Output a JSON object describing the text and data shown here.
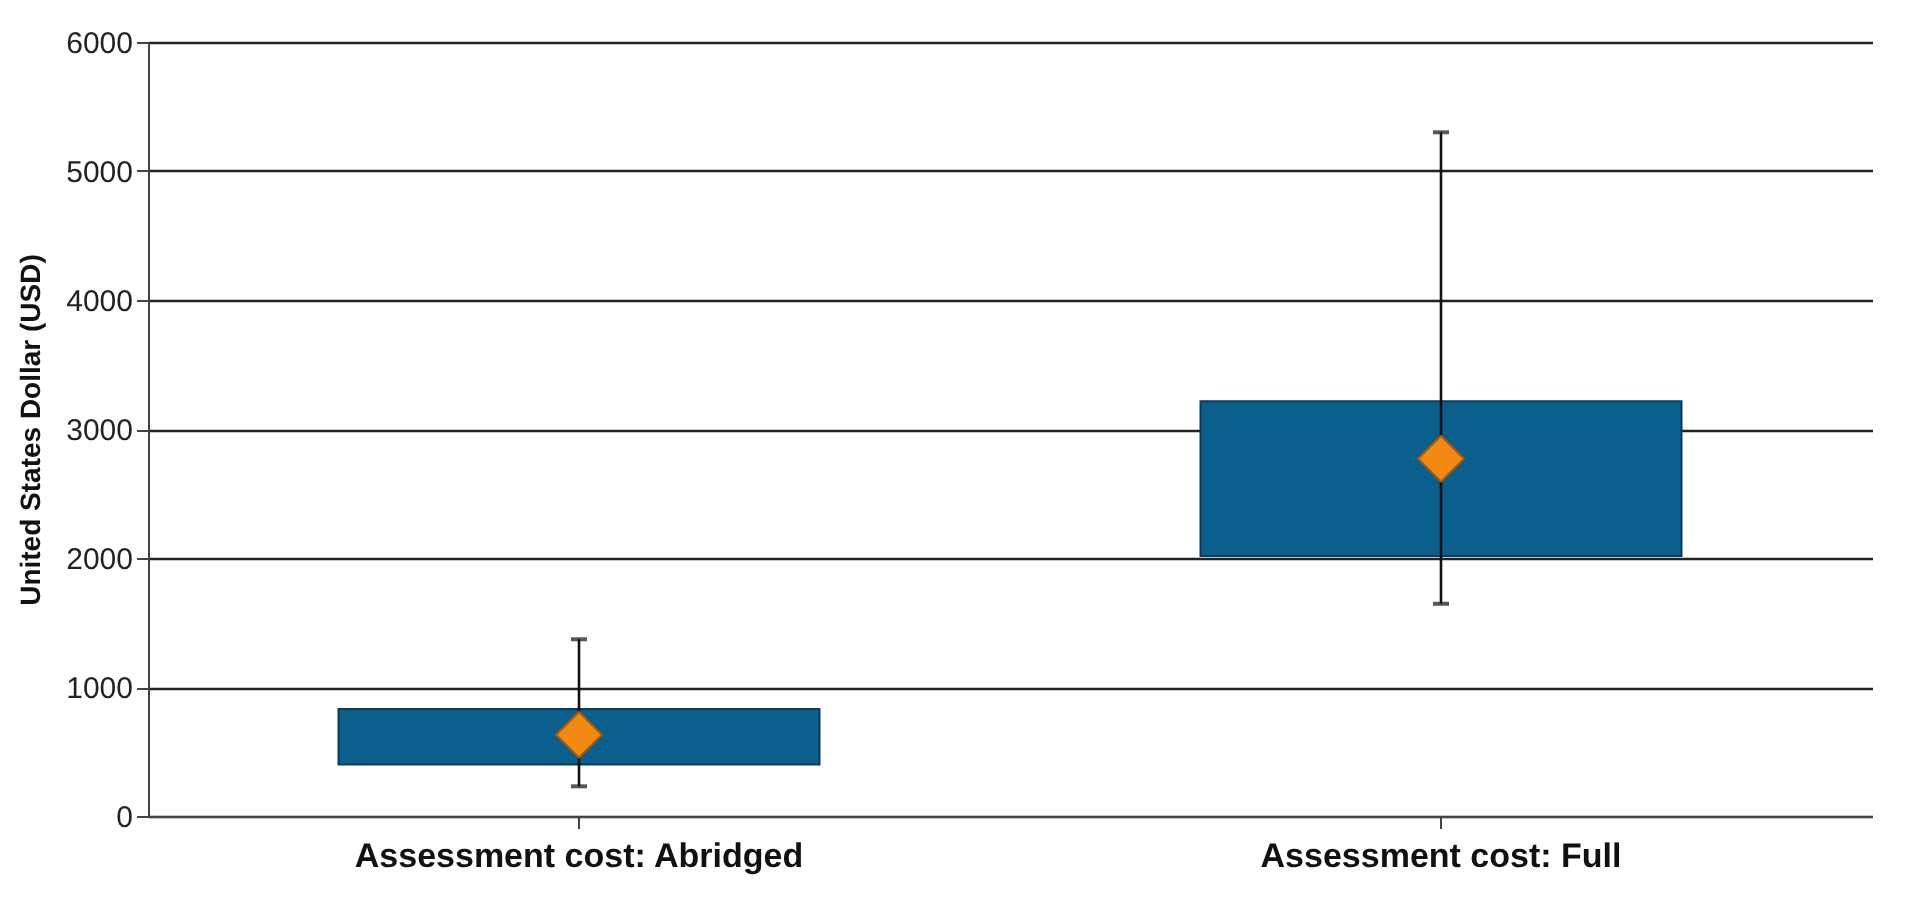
{
  "chart_data": {
    "type": "bar",
    "ylabel": "United States Dollar (USD)",
    "categories": [
      "Assessment cost: Abridged",
      "Assessment cost: Full"
    ],
    "ylim": [
      0,
      6000
    ],
    "yticks": [
      0,
      1000,
      2000,
      3000,
      4000,
      5000,
      6000
    ],
    "grid": "y",
    "series": [
      {
        "type": "bar",
        "color": "#0b5f8c",
        "values": [
          430,
          1200
        ],
        "base": [
          400,
          2015
        ]
      },
      {
        "type": "scatter",
        "color": "#f28a12",
        "marker": "diamond",
        "x": [
          "Assessment cost: Abridged",
          "Assessment cost: Full"
        ],
        "values": [
          630,
          2770
        ],
        "errors": [
          [
            230,
            1370
          ],
          [
            1645,
            5300
          ]
        ]
      }
    ]
  }
}
